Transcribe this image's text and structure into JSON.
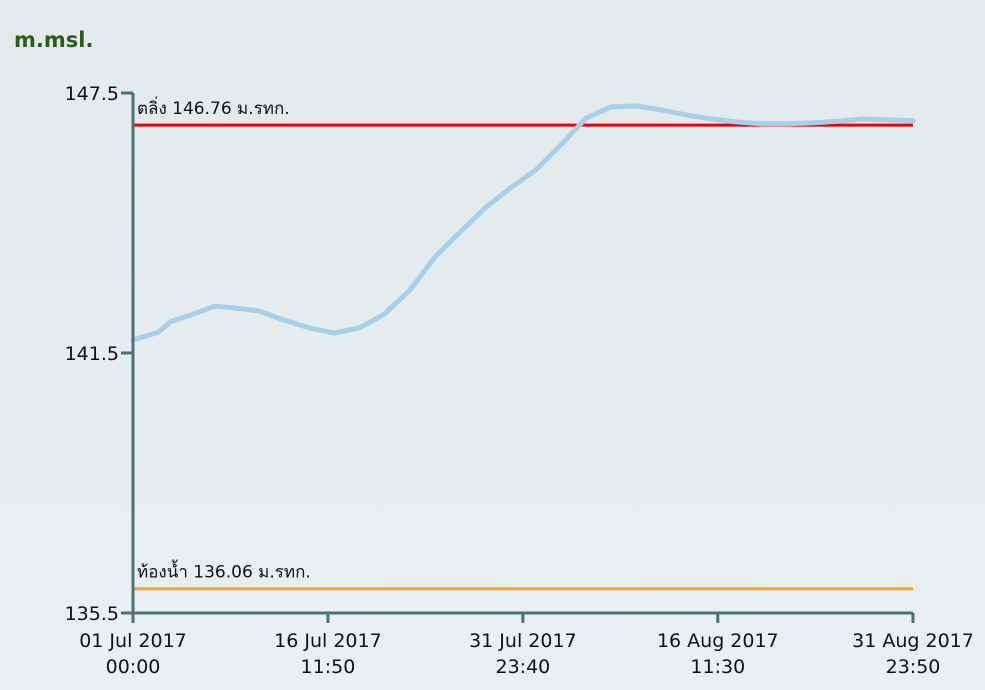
{
  "chart_data": {
    "type": "line",
    "y_label": "m.msl.",
    "x": [
      "2017-07-01 00:00",
      "2017-07-03 00:00",
      "2017-07-04 00:00",
      "2017-07-06 00:00",
      "2017-07-07 12:00",
      "2017-07-09 00:00",
      "2017-07-11 00:00",
      "2017-07-13 00:00",
      "2017-07-15 00:00",
      "2017-07-17 00:00",
      "2017-07-19 00:00",
      "2017-07-21 00:00",
      "2017-07-23 00:00",
      "2017-07-25 00:00",
      "2017-07-27 00:00",
      "2017-07-29 00:00",
      "2017-07-31 00:00",
      "2017-08-02 00:00",
      "2017-08-04 00:00",
      "2017-08-06 00:00",
      "2017-08-08 00:00",
      "2017-08-10 00:00",
      "2017-08-12 00:00",
      "2017-08-14 00:00",
      "2017-08-16 00:00",
      "2017-08-18 00:00",
      "2017-08-20 00:00",
      "2017-08-22 00:00",
      "2017-08-24 00:00",
      "2017-08-26 00:00",
      "2017-08-28 00:00",
      "2017-08-30 00:00",
      "2017-08-31 23:50"
    ],
    "series": [
      {
        "color": "#a9cfe8",
        "values": [
          141.8,
          141.98,
          142.22,
          142.42,
          142.58,
          142.54,
          142.47,
          142.26,
          142.08,
          141.96,
          142.08,
          142.4,
          142.95,
          143.72,
          144.29,
          144.85,
          145.31,
          145.72,
          146.3,
          146.92,
          147.18,
          147.2,
          147.11,
          146.99,
          146.9,
          146.83,
          146.79,
          146.79,
          146.81,
          146.85,
          146.9,
          146.88,
          146.86
        ]
      }
    ],
    "annotations": [
      {
        "label": "ตลิ่ง 146.76 ม.รทก.",
        "value": 146.76,
        "color": "#e8000b"
      },
      {
        "label": "ท้องน้ำ 136.06 ม.รทก.",
        "value": 136.06,
        "color": "#f5a623"
      }
    ],
    "xlim": [
      "2017-07-01 00:00",
      "2017-08-31 23:50"
    ],
    "xticks": [
      {
        "value": "2017-07-01 00:00",
        "label": "01 Jul 2017\n00:00"
      },
      {
        "value": "2017-07-16 11:50",
        "label": "16 Jul 2017\n11:50"
      },
      {
        "value": "2017-07-31 23:40",
        "label": "31 Jul 2017\n23:40"
      },
      {
        "value": "2017-08-16 11:30",
        "label": "16 Aug 2017\n11:30"
      },
      {
        "value": "2017-08-31 23:50",
        "label": "31 Aug 2017\n23:50"
      }
    ],
    "ylim": [
      135.5,
      147.5
    ],
    "yticks": [
      135.5,
      141.5,
      147.5
    ],
    "axis_color": "#4d7179"
  }
}
